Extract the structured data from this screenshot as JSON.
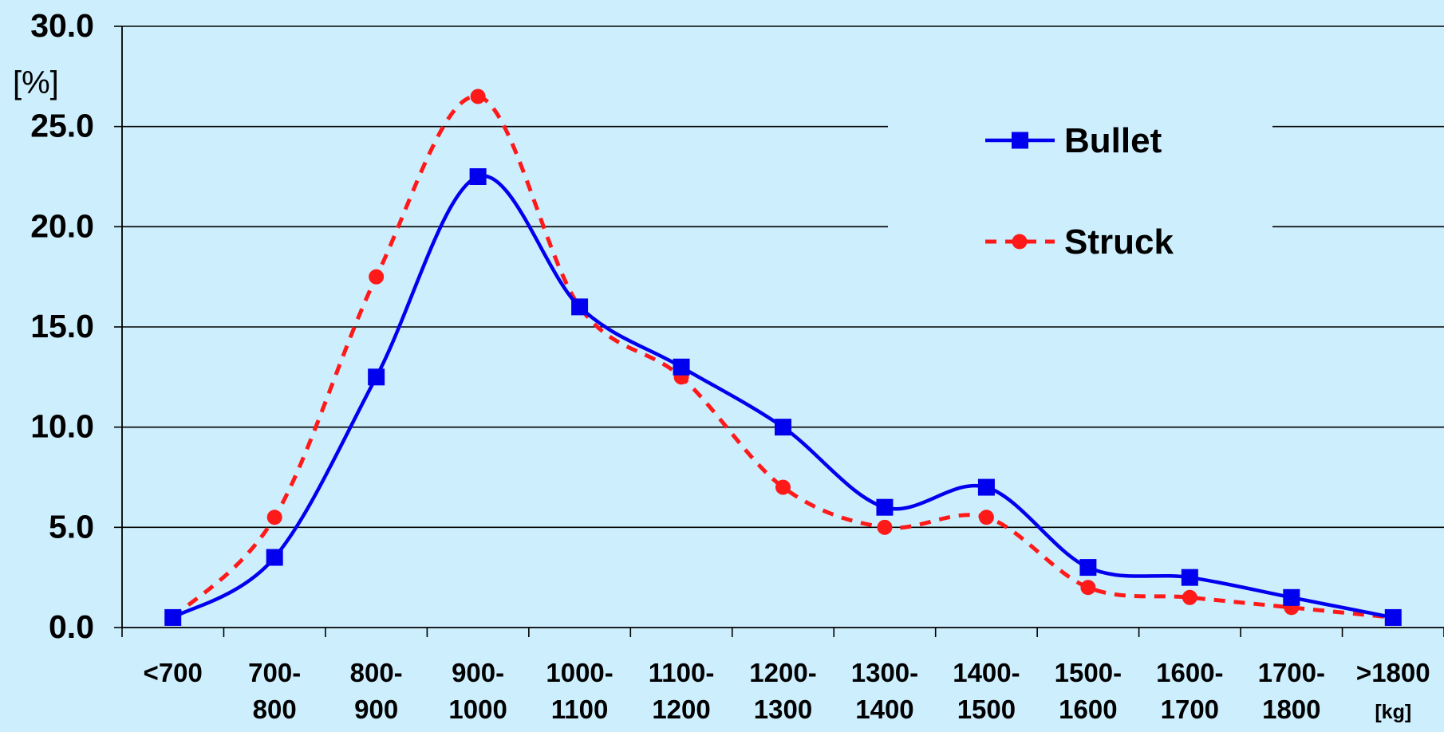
{
  "chart_data": {
    "type": "line",
    "y_unit_label": "[%]",
    "x_unit_label": "[kg]",
    "categories": [
      [
        "<700"
      ],
      [
        "700-",
        "800"
      ],
      [
        "800-",
        "900"
      ],
      [
        "900-",
        "1000"
      ],
      [
        "1000-",
        "1100"
      ],
      [
        "1100-",
        "1200"
      ],
      [
        "1200-",
        "1300"
      ],
      [
        "1300-",
        "1400"
      ],
      [
        "1400-",
        "1500"
      ],
      [
        "1500-",
        "1600"
      ],
      [
        "1600-",
        "1700"
      ],
      [
        "1700-",
        "1800"
      ],
      [
        ">1800"
      ]
    ],
    "y_ticks": [
      "0.0",
      "5.0",
      "10.0",
      "15.0",
      "20.0",
      "25.0",
      "30.0"
    ],
    "ylim": [
      0,
      30
    ],
    "grid": true,
    "legend_position": "top-right",
    "series": [
      {
        "name": "Bullet",
        "color": "#0000ee",
        "marker": "square",
        "line_style": "solid",
        "values": [
          0.5,
          3.5,
          12.5,
          22.5,
          16.0,
          13.0,
          10.0,
          6.0,
          7.0,
          3.0,
          2.5,
          1.5,
          0.5
        ]
      },
      {
        "name": "Struck",
        "color": "#ff1a1a",
        "marker": "circle",
        "line_style": "dashed",
        "values": [
          0.5,
          5.5,
          17.5,
          26.5,
          16.0,
          12.5,
          7.0,
          5.0,
          5.5,
          2.0,
          1.5,
          1.0,
          0.5
        ]
      }
    ]
  }
}
